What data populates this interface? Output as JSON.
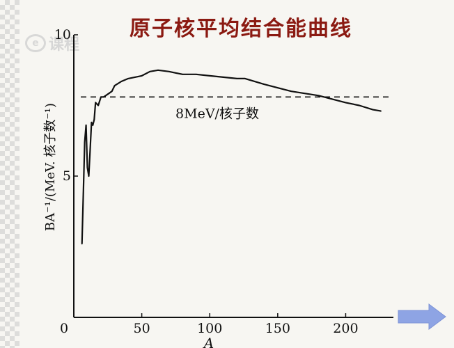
{
  "title": "原子核平均结合能曲线",
  "watermark": {
    "text": "e课程"
  },
  "chart_data": {
    "type": "line",
    "title": "原子核平均结合能曲线",
    "xlabel": "A",
    "ylabel": "BA⁻¹/(MeV. 核子数⁻¹)",
    "xlim": [
      0,
      230
    ],
    "ylim": [
      0,
      10
    ],
    "x_ticks": [
      0,
      50,
      100,
      150,
      200
    ],
    "y_ticks": [
      0,
      5,
      10
    ],
    "x_tick_labels": [
      "0",
      "50",
      "100",
      "150",
      "200"
    ],
    "y_tick_labels": [
      "0",
      "5",
      "10"
    ],
    "grid": false,
    "series": [
      {
        "values_x": [
          6,
          7,
          8,
          9,
          10,
          11,
          12,
          13,
          14,
          15,
          16,
          18,
          20,
          22,
          25,
          28,
          30,
          35,
          40,
          45,
          50,
          56,
          62,
          70,
          80,
          90,
          100,
          110,
          120,
          126,
          140,
          160,
          180,
          200,
          210,
          220,
          226
        ],
        "values_y": [
          2.6,
          4.4,
          6.2,
          6.8,
          5.3,
          5.0,
          5.9,
          6.9,
          6.8,
          7.0,
          7.6,
          7.5,
          7.8,
          7.8,
          7.9,
          8.0,
          8.2,
          8.35,
          8.45,
          8.5,
          8.55,
          8.7,
          8.75,
          8.7,
          8.6,
          8.6,
          8.55,
          8.5,
          8.45,
          8.45,
          8.25,
          8.0,
          7.85,
          7.6,
          7.5,
          7.35,
          7.3
        ]
      }
    ],
    "reference_line": {
      "y": 7.8,
      "label": "8MeV/核子数",
      "style": "dashed"
    }
  },
  "navigation": {
    "next_icon": "right-arrow-icon",
    "color": "#8ea4e4"
  },
  "colors": {
    "title": "#8b1a12",
    "axis": "#111111",
    "curve": "#111111"
  }
}
